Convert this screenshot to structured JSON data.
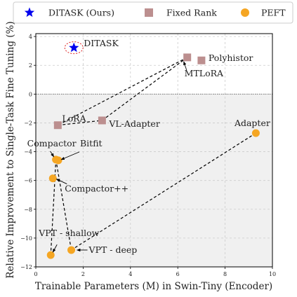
{
  "chart_data": {
    "type": "scatter",
    "xlabel": "Trainable Parameters (M) in Swin-Tiny (Encoder)",
    "ylabel": "Relative Improvement to Single-Task Fine Tuning (%)",
    "xlim": [
      0,
      10
    ],
    "ylim": [
      -12,
      4.2
    ],
    "x_ticks": [
      0,
      2,
      4,
      6,
      8,
      10
    ],
    "y_ticks": [
      -12,
      -10,
      -8,
      -6,
      -4,
      -2,
      0,
      2,
      4
    ],
    "grid": true,
    "legend_position": "top",
    "legend": [
      {
        "label": "DITASK (Ours)",
        "marker": "star",
        "color": "#0000ee"
      },
      {
        "label": "Fixed Rank",
        "marker": "square",
        "color": "#bc8f8f"
      },
      {
        "label": "PEFT",
        "marker": "circle",
        "color": "#f5a623"
      }
    ],
    "points": [
      {
        "label": "DITASK",
        "x": 1.61,
        "y": 3.22,
        "group": "DITASK (Ours)"
      },
      {
        "label": "Polyhistor",
        "x": 7.0,
        "y": 2.34,
        "group": "Fixed Rank"
      },
      {
        "label": "MTLoRA",
        "x": 6.4,
        "y": 2.55,
        "group": "Fixed Rank"
      },
      {
        "label": "LoRA",
        "x": 0.93,
        "y": -2.16,
        "group": "Fixed Rank"
      },
      {
        "label": "VL-Adapter",
        "x": 2.8,
        "y": -1.83,
        "group": "Fixed Rank"
      },
      {
        "label": "Adapter",
        "x": 9.3,
        "y": -2.71,
        "group": "PEFT"
      },
      {
        "label": "Compactor",
        "x": 0.85,
        "y": -4.55,
        "group": "PEFT"
      },
      {
        "label": "Bitfit",
        "x": 0.95,
        "y": -4.6,
        "group": "PEFT"
      },
      {
        "label": "Compactor++",
        "x": 0.72,
        "y": -5.85,
        "group": "PEFT"
      },
      {
        "label": "VPT - shallow",
        "x": 0.63,
        "y": -11.18,
        "group": "PEFT"
      },
      {
        "label": "VPT - deep",
        "x": 1.5,
        "y": -10.83,
        "group": "PEFT"
      }
    ],
    "connections": [
      [
        "MTLoRA",
        "LoRA"
      ],
      [
        "MTLoRA",
        "VL-Adapter"
      ],
      [
        "LoRA",
        "VL-Adapter"
      ],
      [
        "Adapter",
        "VPT - deep"
      ],
      [
        "Compactor",
        "VPT - deep"
      ],
      [
        "Compactor",
        "VPT - shallow"
      ]
    ]
  }
}
